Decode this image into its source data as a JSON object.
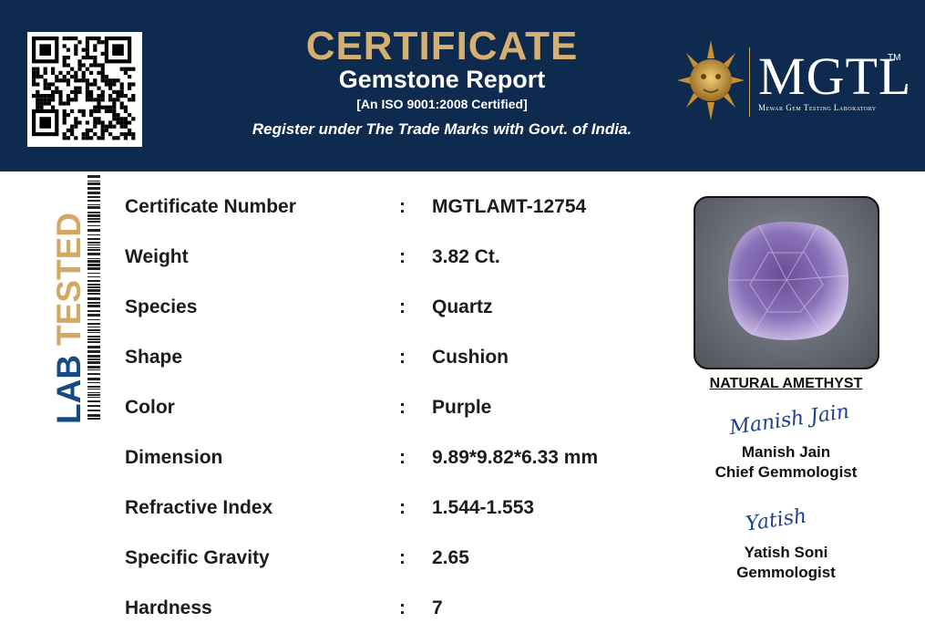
{
  "header": {
    "title": "CERTIFICATE",
    "subtitle": "Gemstone Report",
    "certification": "[An ISO 9001:2008 Certified]",
    "trademark_note": "Register under The Trade Marks with Govt. of India.",
    "logo": {
      "name": "MGTL",
      "tm": "TM",
      "full_name": "Mewar Gem Testing Laboratory"
    }
  },
  "side_label": {
    "first": "LAB",
    "second": "TESTED"
  },
  "separator": ":",
  "details": [
    {
      "label": "Certificate Number",
      "value": "MGTLAMT-12754"
    },
    {
      "label": "Weight",
      "value": "3.82 Ct."
    },
    {
      "label": "Species",
      "value": "Quartz"
    },
    {
      "label": "Shape",
      "value": "Cushion"
    },
    {
      "label": "Color",
      "value": "Purple"
    },
    {
      "label": "Dimension",
      "value": "9.89*9.82*6.33 mm"
    },
    {
      "label": "Refractive Index",
      "value": "1.544-1.553"
    },
    {
      "label": "Specific Gravity",
      "value": "2.65"
    },
    {
      "label": "Hardness",
      "value": "7"
    }
  ],
  "gem_caption": "NATURAL AMETHYST",
  "signatures": [
    {
      "signature": "Manish Jain",
      "name": "Manish Jain",
      "role": "Chief Gemmologist"
    },
    {
      "signature": "Yatish",
      "name": "Yatish Soni",
      "role": "Gemmologist"
    }
  ]
}
